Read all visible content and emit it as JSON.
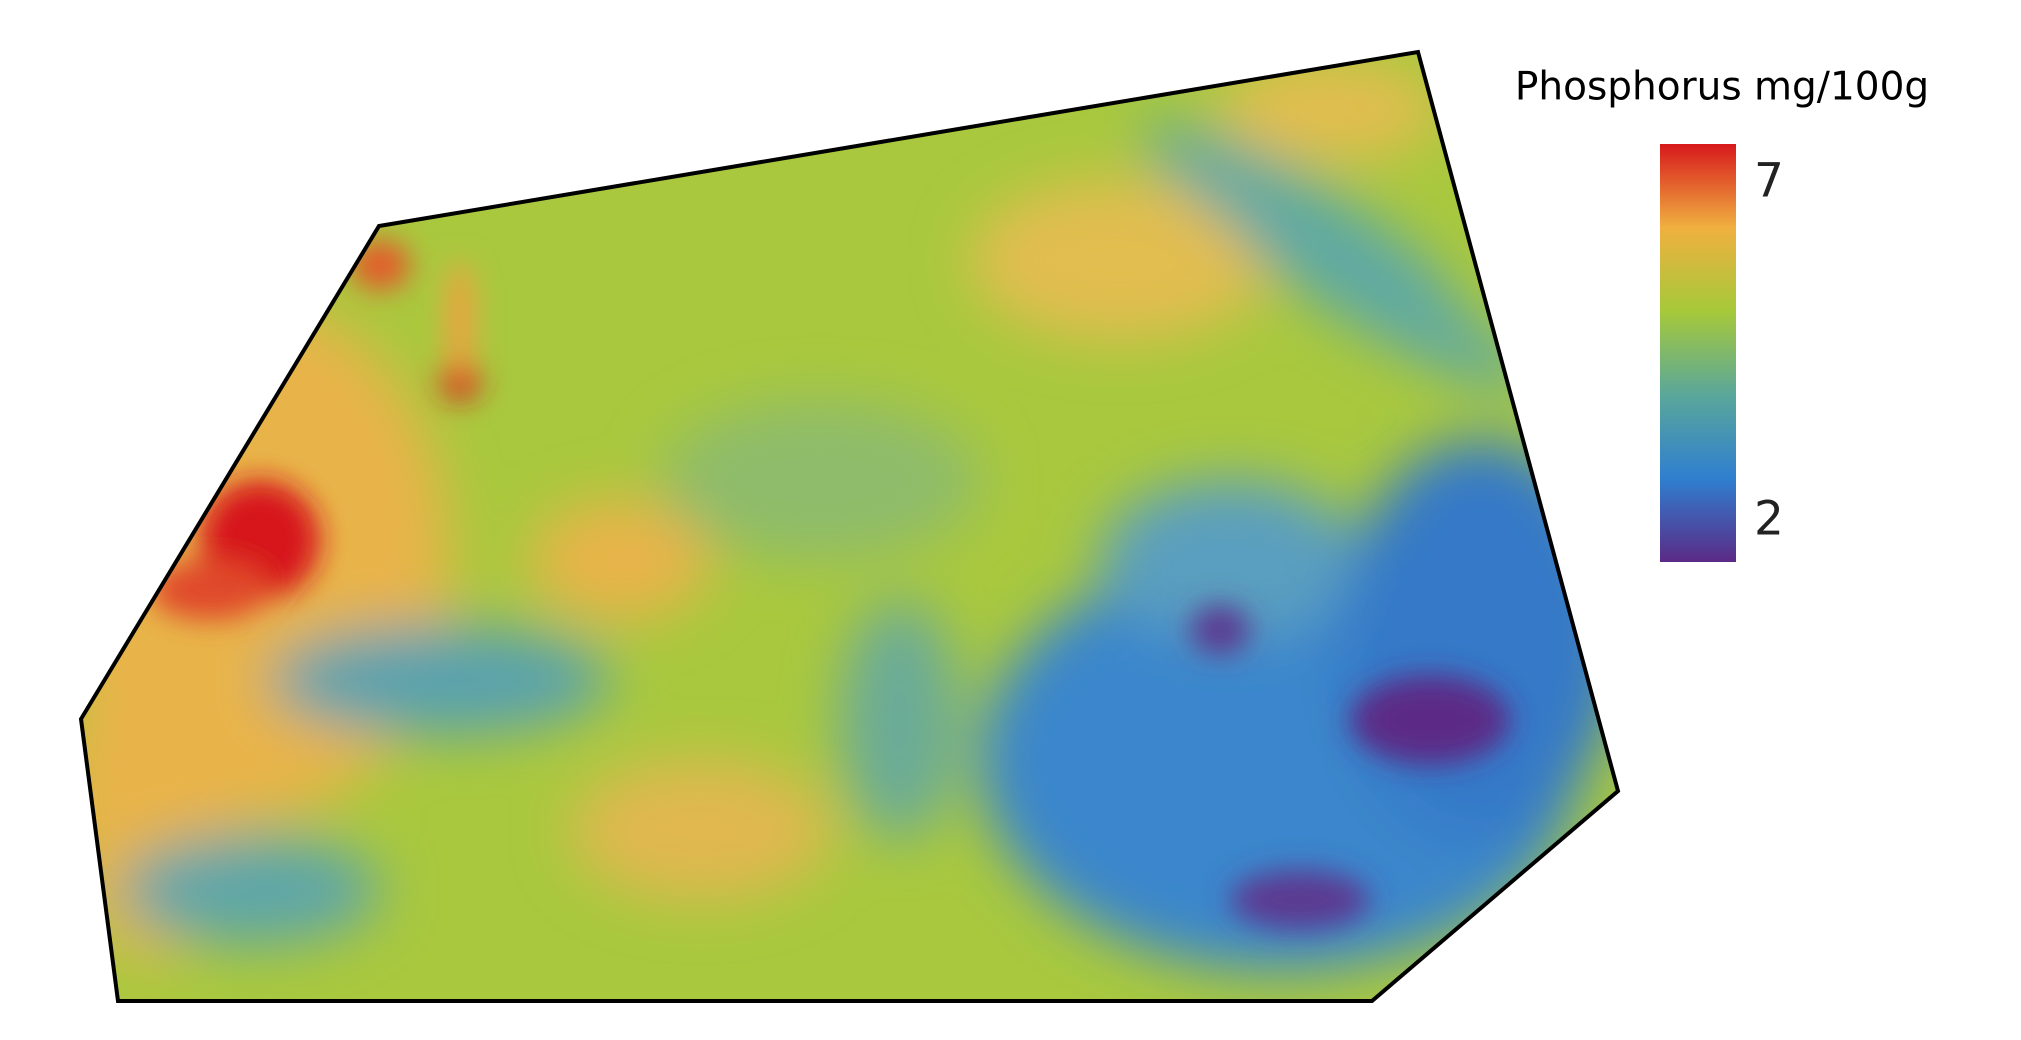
{
  "legend": {
    "title": "Phosphorus mg/100g",
    "min": 2,
    "max": 7,
    "colors": [
      "#5b2a86",
      "#2f7fcf",
      "#5aa79a",
      "#a6c93a",
      "#f0b040",
      "#d7191c"
    ]
  }
}
